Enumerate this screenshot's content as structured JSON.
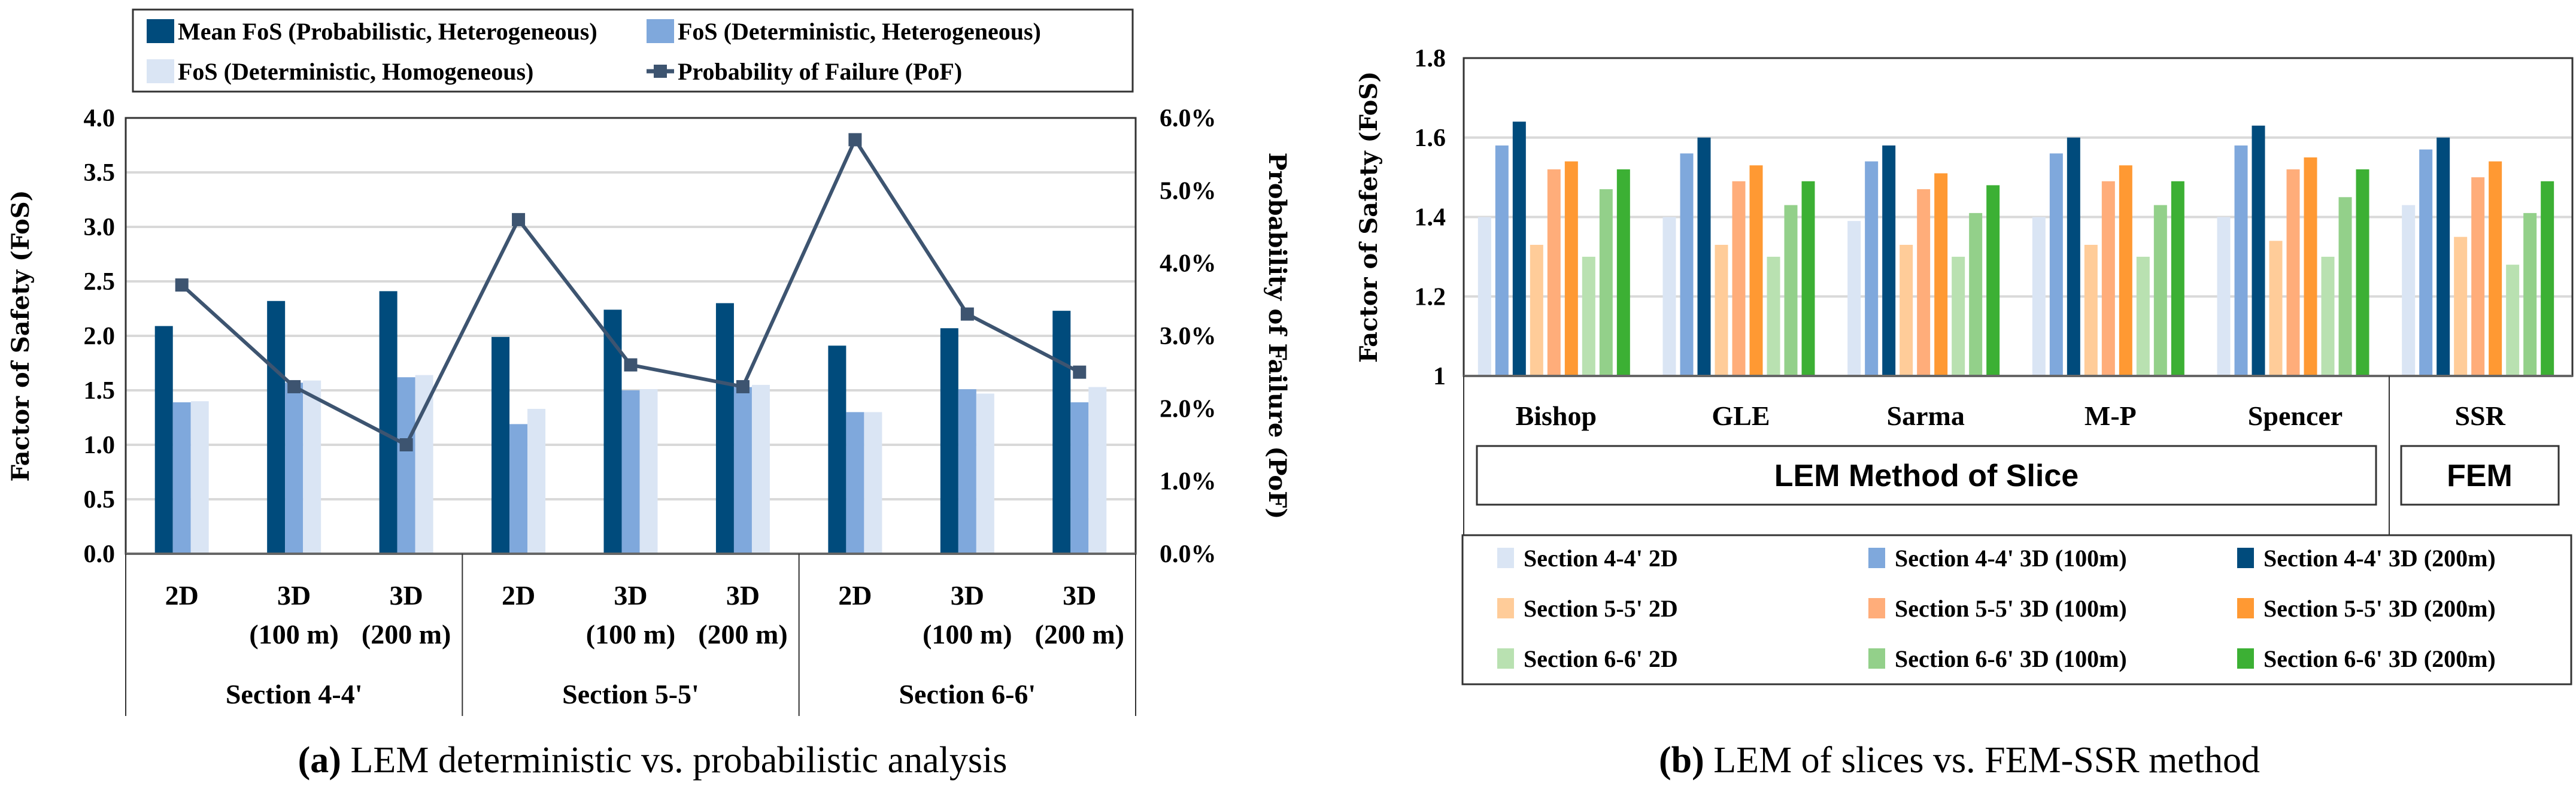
{
  "colors": {
    "mean_prob_het": "#004b7c",
    "det_het": "#7fa8dc",
    "det_hom": "#dae5f4",
    "pof_line": "#3d5470",
    "s44_2d": "#dae5f4",
    "s44_100": "#7fa8dc",
    "s44_200": "#004b7c",
    "s55_2d": "#ffcc99",
    "s55_100": "#ffad7a",
    "s55_200": "#ff9933",
    "s66_2d": "#b9e1b1",
    "s66_100": "#93d08a",
    "s66_200": "#3cb034"
  },
  "chart_data": [
    {
      "type": "bar",
      "caption_label": "(a)",
      "caption": "LEM deterministic vs. probabilistic analysis",
      "ylabel": "Factor of Safety (FoS)",
      "y2label": "Probability of Failure (PoF)",
      "ylim": [
        0,
        4.0
      ],
      "yticks": [
        "0.0",
        "0.5",
        "1.0",
        "1.5",
        "2.0",
        "2.5",
        "3.0",
        "3.5",
        "4.0"
      ],
      "y2lim": [
        0,
        6.0
      ],
      "y2ticks": [
        "0.0%",
        "1.0%",
        "2.0%",
        "3.0%",
        "4.0%",
        "5.0%",
        "6.0%"
      ],
      "grid": true,
      "legend_position": "top",
      "categories": [
        {
          "line1": "2D",
          "line2": ""
        },
        {
          "line1": "3D",
          "line2": "(100 m)"
        },
        {
          "line1": "3D",
          "line2": "(200 m)"
        },
        {
          "line1": "2D",
          "line2": ""
        },
        {
          "line1": "3D",
          "line2": "(100 m)"
        },
        {
          "line1": "3D",
          "line2": "(200 m)"
        },
        {
          "line1": "2D",
          "line2": ""
        },
        {
          "line1": "3D",
          "line2": "(100 m)"
        },
        {
          "line1": "3D",
          "line2": "(200 m)"
        }
      ],
      "groups": [
        "Section 4-4'",
        "Section 5-5'",
        "Section 6-6'"
      ],
      "series": [
        {
          "name": "Mean FoS (Probabilistic, Heterogeneous)",
          "kind": "bar",
          "color_key": "mean_prob_het",
          "values": [
            2.09,
            2.32,
            2.41,
            1.99,
            2.24,
            2.3,
            1.91,
            2.07,
            2.23
          ]
        },
        {
          "name": "FoS (Deterministic, Heterogeneous)",
          "kind": "bar",
          "color_key": "det_het",
          "values": [
            1.39,
            1.57,
            1.62,
            1.19,
            1.5,
            1.53,
            1.3,
            1.51,
            1.39
          ]
        },
        {
          "name": "FoS (Deterministic, Homogeneous)",
          "kind": "bar",
          "color_key": "det_hom",
          "values": [
            1.4,
            1.59,
            1.64,
            1.33,
            1.51,
            1.55,
            1.3,
            1.47,
            1.53
          ]
        },
        {
          "name": "Probability of Failure (PoF)",
          "kind": "line",
          "axis": "right",
          "color_key": "pof_line",
          "values": [
            3.7,
            2.3,
            1.5,
            4.6,
            2.6,
            2.3,
            5.7,
            3.3,
            2.5
          ]
        }
      ]
    },
    {
      "type": "bar",
      "caption_label": "(b)",
      "caption": "LEM of slices vs. FEM-SSR method",
      "ylabel": "Factor of Safety (FoS)",
      "ylim": [
        1,
        1.8
      ],
      "yticks": [
        "1",
        "1.2",
        "1.4",
        "1.6",
        "1.8"
      ],
      "grid": true,
      "legend_position": "bottom",
      "categories": [
        "Bishop",
        "GLE",
        "Sarma",
        "M-P",
        "Spencer",
        "SSR"
      ],
      "groups": [
        "LEM Method of Slice",
        "FEM"
      ],
      "series": [
        {
          "name": "Section 4-4' 2D",
          "color_key": "s44_2d",
          "values": [
            1.4,
            1.4,
            1.39,
            1.4,
            1.4,
            1.43
          ]
        },
        {
          "name": "Section 4-4' 3D (100m)",
          "color_key": "s44_100",
          "values": [
            1.58,
            1.56,
            1.54,
            1.56,
            1.58,
            1.57
          ]
        },
        {
          "name": "Section 4-4' 3D (200m)",
          "color_key": "s44_200",
          "values": [
            1.64,
            1.6,
            1.58,
            1.6,
            1.63,
            1.6
          ]
        },
        {
          "name": "Section 5-5' 2D",
          "color_key": "s55_2d",
          "values": [
            1.33,
            1.33,
            1.33,
            1.33,
            1.34,
            1.35
          ]
        },
        {
          "name": "Section 5-5' 3D (100m)",
          "color_key": "s55_100",
          "values": [
            1.52,
            1.49,
            1.47,
            1.49,
            1.52,
            1.5
          ]
        },
        {
          "name": "Section 5-5' 3D (200m)",
          "color_key": "s55_200",
          "values": [
            1.54,
            1.53,
            1.51,
            1.53,
            1.55,
            1.54
          ]
        },
        {
          "name": "Section 6-6' 2D",
          "color_key": "s66_2d",
          "values": [
            1.3,
            1.3,
            1.3,
            1.3,
            1.3,
            1.28
          ]
        },
        {
          "name": "Section 6-6' 3D (100m)",
          "color_key": "s66_100",
          "values": [
            1.47,
            1.43,
            1.41,
            1.43,
            1.45,
            1.41
          ]
        },
        {
          "name": "Section 6-6' 3D (200m)",
          "color_key": "s66_200",
          "values": [
            1.52,
            1.49,
            1.48,
            1.49,
            1.52,
            1.49
          ]
        }
      ]
    }
  ]
}
